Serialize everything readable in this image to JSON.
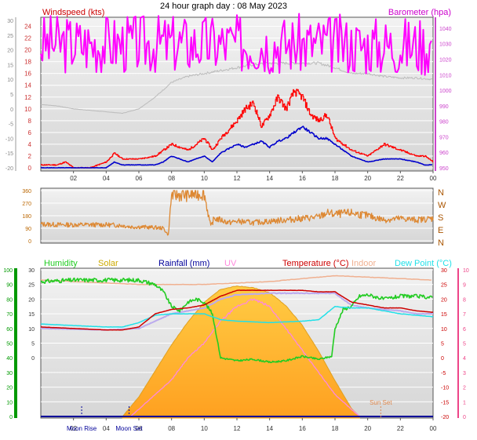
{
  "page_title": "24 hour graph day : 08 May 2023",
  "x_ticks": [
    "02",
    "04",
    "06",
    "08",
    "10",
    "12",
    "14",
    "16",
    "18",
    "20",
    "22",
    "00"
  ],
  "colors": {
    "windspeed": "#ff0000",
    "windspeed_avg": "#0000cc",
    "barometer": "#ff00ff",
    "barometer_label": "#cc00cc",
    "wind_dir": "#dd8833",
    "humidity": "#22cc22",
    "solar": "#ffb030",
    "rainfall": "#000099",
    "uv": "#ff88dd",
    "temperature": "#cc0000",
    "indoor": "#f0b090",
    "dewpoint": "#22e0e8",
    "grey_series": "#bbbbbb",
    "axis_windspeed": "#cc3333",
    "axis_barometer": "#cc44cc",
    "axis_direction": "#bb6600",
    "axis_humidity": "#009900",
    "axis_uv": "#ee4488"
  },
  "chart_data": [
    {
      "type": "line",
      "panel": "wind",
      "title": "",
      "left_label": "Windspeed (kts)",
      "right_label": "Barometer (hpa)",
      "left_ticks": [
        24,
        22,
        20,
        18,
        16,
        14,
        12,
        10,
        8,
        6,
        4,
        2,
        0
      ],
      "left_outer_ticks": [
        30,
        25,
        20,
        15,
        10,
        5,
        0,
        -5,
        -10,
        -15,
        -20
      ],
      "right_ticks": [
        1040,
        1030,
        1020,
        1010,
        1000,
        990,
        980,
        970,
        960,
        950
      ],
      "left_range": [
        0,
        25
      ],
      "right_range": [
        950,
        1045
      ],
      "series": [
        {
          "name": "Windspeed",
          "axis": "left",
          "x": [
            0,
            1,
            1.5,
            2,
            3,
            4,
            4.5,
            5,
            6,
            7,
            7.5,
            8,
            9,
            10,
            10.5,
            11,
            12,
            12.5,
            13,
            13.5,
            14,
            14.5,
            15,
            15.5,
            16,
            16.5,
            17,
            17.5,
            18,
            19,
            20,
            21,
            22,
            23,
            23.5,
            24
          ],
          "values": [
            0.5,
            0.5,
            1,
            0,
            0,
            1,
            2.5,
            1.5,
            1.5,
            2,
            3,
            4,
            3,
            5,
            3,
            5,
            8,
            10,
            11,
            7,
            9,
            12,
            10,
            13,
            12,
            9,
            8,
            9,
            5,
            3,
            2,
            4,
            3,
            2,
            2,
            1
          ]
        },
        {
          "name": "Wind Average",
          "axis": "left",
          "x": [
            0,
            1,
            2,
            3,
            4,
            4.5,
            5,
            6,
            7,
            7.5,
            8,
            9,
            10,
            10.5,
            11,
            12,
            12.5,
            13,
            13.5,
            14,
            14.5,
            15,
            15.5,
            16,
            16.5,
            17,
            17.5,
            18,
            19,
            20,
            21,
            22,
            23,
            23.5,
            24
          ],
          "values": [
            0,
            0,
            0,
            0,
            0,
            1,
            0.5,
            0.5,
            0.5,
            1,
            2,
            1,
            2,
            1,
            2.5,
            4,
            3.5,
            4,
            4.5,
            3.5,
            4.5,
            5,
            6,
            7,
            6,
            5,
            5,
            4,
            2,
            1,
            1.5,
            1.5,
            1,
            0.5,
            0.5
          ]
        },
        {
          "name": "Barometer",
          "axis": "right",
          "x": [
            0,
            2,
            4,
            6,
            8,
            10,
            12,
            14,
            16,
            18,
            20,
            22,
            24
          ],
          "values": [
            1030,
            1030,
            1030,
            1030,
            1030,
            1030,
            1030,
            1030,
            1030,
            1030,
            1029,
            1029,
            1029
          ]
        },
        {
          "name": "",
          "axis": "outer",
          "x": [
            0,
            1,
            2,
            3,
            4,
            5,
            6,
            7,
            8,
            9,
            10,
            11,
            12,
            13,
            14,
            15,
            16,
            17,
            18,
            19,
            20,
            21,
            22,
            23,
            24
          ],
          "values": [
            1.5,
            1,
            0,
            -0.5,
            -1,
            -1.5,
            0,
            4,
            9,
            11,
            12,
            13,
            14,
            15,
            15.5,
            15.5,
            15.5,
            15.5,
            14,
            12,
            12,
            11,
            10.5,
            10.5,
            10
          ]
        }
      ]
    },
    {
      "type": "line",
      "panel": "direction",
      "title": "",
      "left_ticks": [
        360,
        270,
        180,
        90,
        0
      ],
      "right_labels": [
        "N",
        "W",
        "S",
        "E",
        "N"
      ],
      "range": [
        0,
        360
      ],
      "series": [
        {
          "name": "Wind Direction",
          "x": [
            0,
            1,
            2,
            3,
            4,
            5,
            5.5,
            6,
            7,
            7.5,
            7.8,
            8,
            8.5,
            9,
            10,
            10.4,
            10.6,
            11,
            11.5,
            12,
            13,
            14,
            15,
            16,
            17,
            17.5,
            18,
            19,
            20,
            21,
            22,
            23,
            24
          ],
          "values": [
            120,
            115,
            115,
            115,
            115,
            110,
            100,
            100,
            95,
            90,
            40,
            330,
            330,
            330,
            340,
            100,
            160,
            150,
            130,
            140,
            130,
            140,
            150,
            160,
            170,
            200,
            190,
            200,
            180,
            150,
            160,
            150,
            160
          ]
        }
      ]
    },
    {
      "type": "line",
      "panel": "temperature",
      "title": "",
      "labels": [
        "Humidity",
        "Solar",
        "Rainfall (mm)",
        "UV",
        "Temperature (°C)",
        "Indoor",
        "Dew Point (°C)"
      ],
      "left_ticks": [
        100,
        90,
        80,
        70,
        60,
        50,
        40,
        30,
        20,
        10,
        0
      ],
      "left_inner_ticks": [
        30,
        25,
        20,
        15,
        10,
        5,
        0
      ],
      "right_ticks": [
        30,
        25,
        20,
        15,
        10,
        5,
        0,
        -5,
        -10,
        -15,
        -20
      ],
      "uv_ticks": [
        10,
        9,
        8,
        7,
        6,
        5,
        4,
        3,
        2,
        1,
        0
      ],
      "annotations": [
        "Moon Rise",
        "Moon Set",
        "Sun Set"
      ],
      "series": [
        {
          "name": "Humidity",
          "axis": "humidity",
          "x": [
            0,
            2,
            4,
            6,
            7,
            7.5,
            8,
            8.5,
            9,
            9.5,
            10,
            10.5,
            11,
            12,
            13,
            14,
            15,
            16,
            17,
            17.8,
            18,
            18.5,
            19,
            19.5,
            20,
            21,
            22,
            23,
            24
          ],
          "values": [
            92,
            93,
            93,
            93,
            90,
            85,
            75,
            72,
            78,
            80,
            78,
            70,
            40,
            38,
            39,
            37,
            38,
            41,
            39,
            41,
            60,
            73,
            75,
            82,
            83,
            80,
            82,
            82,
            81
          ]
        },
        {
          "name": "Solar",
          "axis": "solar",
          "x": [
            5,
            6,
            7,
            8,
            9,
            10,
            11,
            12,
            13,
            14,
            15,
            16,
            17,
            18,
            19,
            19.5
          ],
          "values": [
            0,
            120,
            280,
            440,
            580,
            700,
            780,
            800,
            790,
            760,
            680,
            560,
            400,
            220,
            50,
            0
          ]
        },
        {
          "name": "UV",
          "axis": "uv",
          "x": [
            5.5,
            6,
            7,
            8,
            9,
            10,
            11,
            12,
            13,
            14,
            15,
            16,
            17,
            18,
            19,
            19.5
          ],
          "values": [
            0,
            0.5,
            1.5,
            2.5,
            4,
            5,
            6.5,
            7.5,
            8,
            7.5,
            6,
            4.5,
            3,
            1.5,
            0.5,
            0
          ]
        },
        {
          "name": "Temperature",
          "axis": "temp",
          "x": [
            0,
            2,
            4,
            5,
            6,
            7,
            8,
            9,
            10,
            11,
            12,
            14,
            16,
            17,
            18,
            19,
            20,
            21,
            22,
            23,
            24
          ],
          "values": [
            10.5,
            10,
            9.5,
            9.5,
            10.5,
            15,
            16.5,
            17,
            18,
            21,
            23,
            23,
            23,
            22.5,
            22.5,
            19,
            18,
            17,
            17,
            16,
            15.5
          ]
        },
        {
          "name": "Indoor",
          "axis": "temp",
          "x": [
            0,
            2,
            4,
            6,
            8,
            10,
            12,
            14,
            16,
            18,
            20,
            22,
            24
          ],
          "values": [
            26.5,
            26,
            25.5,
            25,
            25,
            25,
            25.5,
            26,
            27,
            28,
            27.5,
            27,
            26.5
          ]
        },
        {
          "name": "Dew Point",
          "axis": "temp",
          "x": [
            0,
            2,
            4,
            5,
            6,
            7,
            8,
            9,
            10,
            11,
            12,
            14,
            16,
            17,
            18,
            19,
            20,
            21,
            22,
            23,
            24
          ],
          "values": [
            11.5,
            11,
            10.5,
            10.5,
            12,
            14.5,
            15,
            15,
            15,
            13,
            12.5,
            12,
            12.5,
            13,
            17.5,
            17,
            17,
            16,
            15,
            14.5,
            14
          ]
        },
        {
          "name": "",
          "axis": "temp",
          "x": [
            0,
            4,
            6,
            8,
            10,
            11,
            12,
            14,
            16,
            17,
            18,
            19,
            20,
            21,
            22,
            23,
            24
          ],
          "values": [
            10,
            9.5,
            10,
            15,
            17,
            20,
            21.5,
            22,
            22,
            22,
            22,
            18,
            17,
            16.5,
            16,
            15,
            15
          ]
        },
        {
          "name": "Rainfall",
          "axis": "rain",
          "x": [
            0,
            24
          ],
          "values": [
            0,
            0
          ]
        }
      ]
    }
  ]
}
